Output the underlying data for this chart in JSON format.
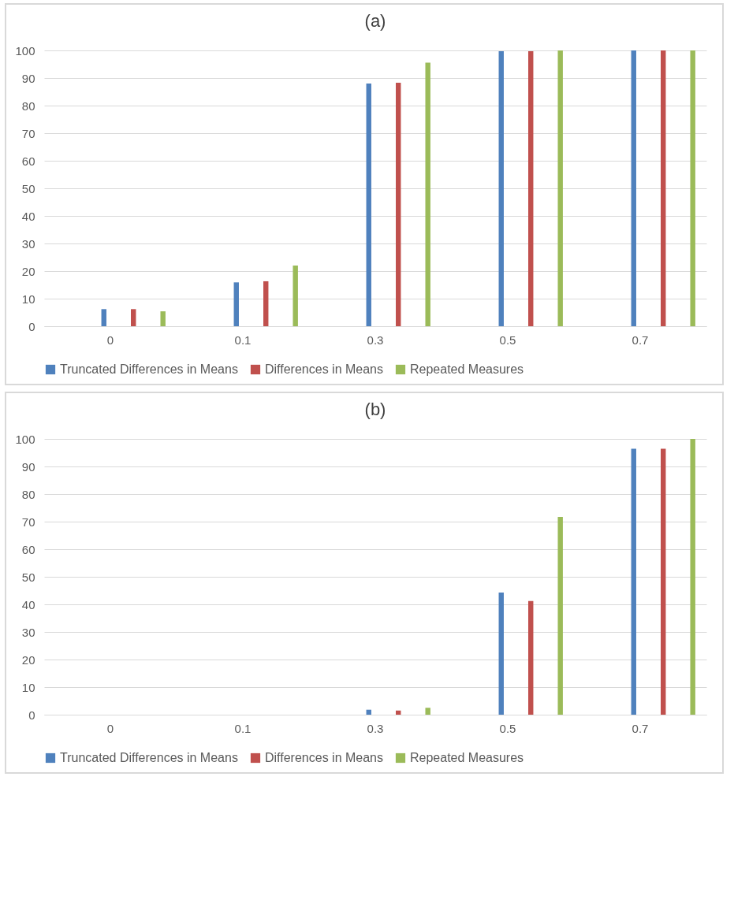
{
  "chart_data": [
    {
      "type": "bar",
      "title": "(a)",
      "categories": [
        "0",
        "0.1",
        "0.3",
        "0.5",
        "0.7"
      ],
      "series": [
        {
          "name": "Truncated Differences in Means",
          "color": "#4f81bd",
          "values": [
            6.2,
            15.9,
            88.0,
            99.7,
            100
          ]
        },
        {
          "name": "Differences in Means",
          "color": "#c0504d",
          "values": [
            6.2,
            16.3,
            88.3,
            99.7,
            100
          ]
        },
        {
          "name": "Repeated Measures",
          "color": "#9bbb59",
          "values": [
            5.4,
            22.0,
            95.6,
            100,
            100
          ]
        }
      ],
      "ylim": [
        0,
        100
      ],
      "yticks": [
        0,
        10,
        20,
        30,
        40,
        50,
        60,
        70,
        80,
        90,
        100
      ],
      "grid": "y",
      "legend": "bottom"
    },
    {
      "type": "bar",
      "title": "(b)",
      "categories": [
        "0",
        "0.1",
        "0.3",
        "0.5",
        "0.7"
      ],
      "series": [
        {
          "name": "Truncated Differences in Means",
          "color": "#4f81bd",
          "values": [
            0,
            0,
            1.8,
            44.3,
            96.4
          ]
        },
        {
          "name": "Differences in Means",
          "color": "#c0504d",
          "values": [
            0,
            0,
            1.5,
            41.2,
            96.4
          ]
        },
        {
          "name": "Repeated Measures",
          "color": "#9bbb59",
          "values": [
            0,
            0,
            2.5,
            71.7,
            100
          ]
        }
      ],
      "ylim": [
        0,
        100
      ],
      "yticks": [
        0,
        10,
        20,
        30,
        40,
        50,
        60,
        70,
        80,
        90,
        100
      ],
      "grid": "y",
      "legend": "bottom"
    }
  ]
}
